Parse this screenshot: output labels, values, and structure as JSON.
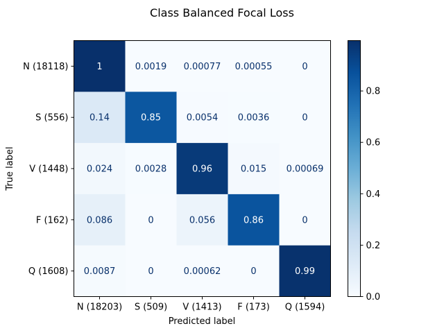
{
  "chart_data": {
    "type": "heatmap",
    "title": "Class Balanced Focal Loss",
    "xlabel": "Predicted label",
    "ylabel": "True label",
    "x_categories": [
      "N (18203)",
      "S (509)",
      "V (1413)",
      "F (173)",
      "Q (1594)"
    ],
    "y_categories": [
      "N (18118)",
      "S (556)",
      "V (1448)",
      "F (162)",
      "Q (1608)"
    ],
    "values": [
      [
        1,
        0.0019,
        0.00077,
        0.00055,
        0
      ],
      [
        0.14,
        0.85,
        0.0054,
        0.0036,
        0
      ],
      [
        0.024,
        0.0028,
        0.96,
        0.015,
        0.00069
      ],
      [
        0.086,
        0,
        0.056,
        0.86,
        0
      ],
      [
        0.0087,
        0,
        0.00062,
        0,
        0.99
      ]
    ],
    "labels": [
      [
        "1",
        "0.0019",
        "0.00077",
        "0.00055",
        "0"
      ],
      [
        "0.14",
        "0.85",
        "0.0054",
        "0.0036",
        "0"
      ],
      [
        "0.024",
        "0.0028",
        "0.96",
        "0.015",
        "0.00069"
      ],
      [
        "0.086",
        "0",
        "0.056",
        "0.86",
        "0"
      ],
      [
        "0.0087",
        "0",
        "0.00062",
        "0",
        "0.99"
      ]
    ],
    "colormap": "Blues",
    "colorbar": {
      "range": [
        0,
        0.996
      ],
      "ticks": [
        0.0,
        0.2,
        0.4,
        0.6,
        0.8
      ],
      "tick_labels": [
        "0.0",
        "0.2",
        "0.4",
        "0.6",
        "0.8"
      ]
    }
  }
}
